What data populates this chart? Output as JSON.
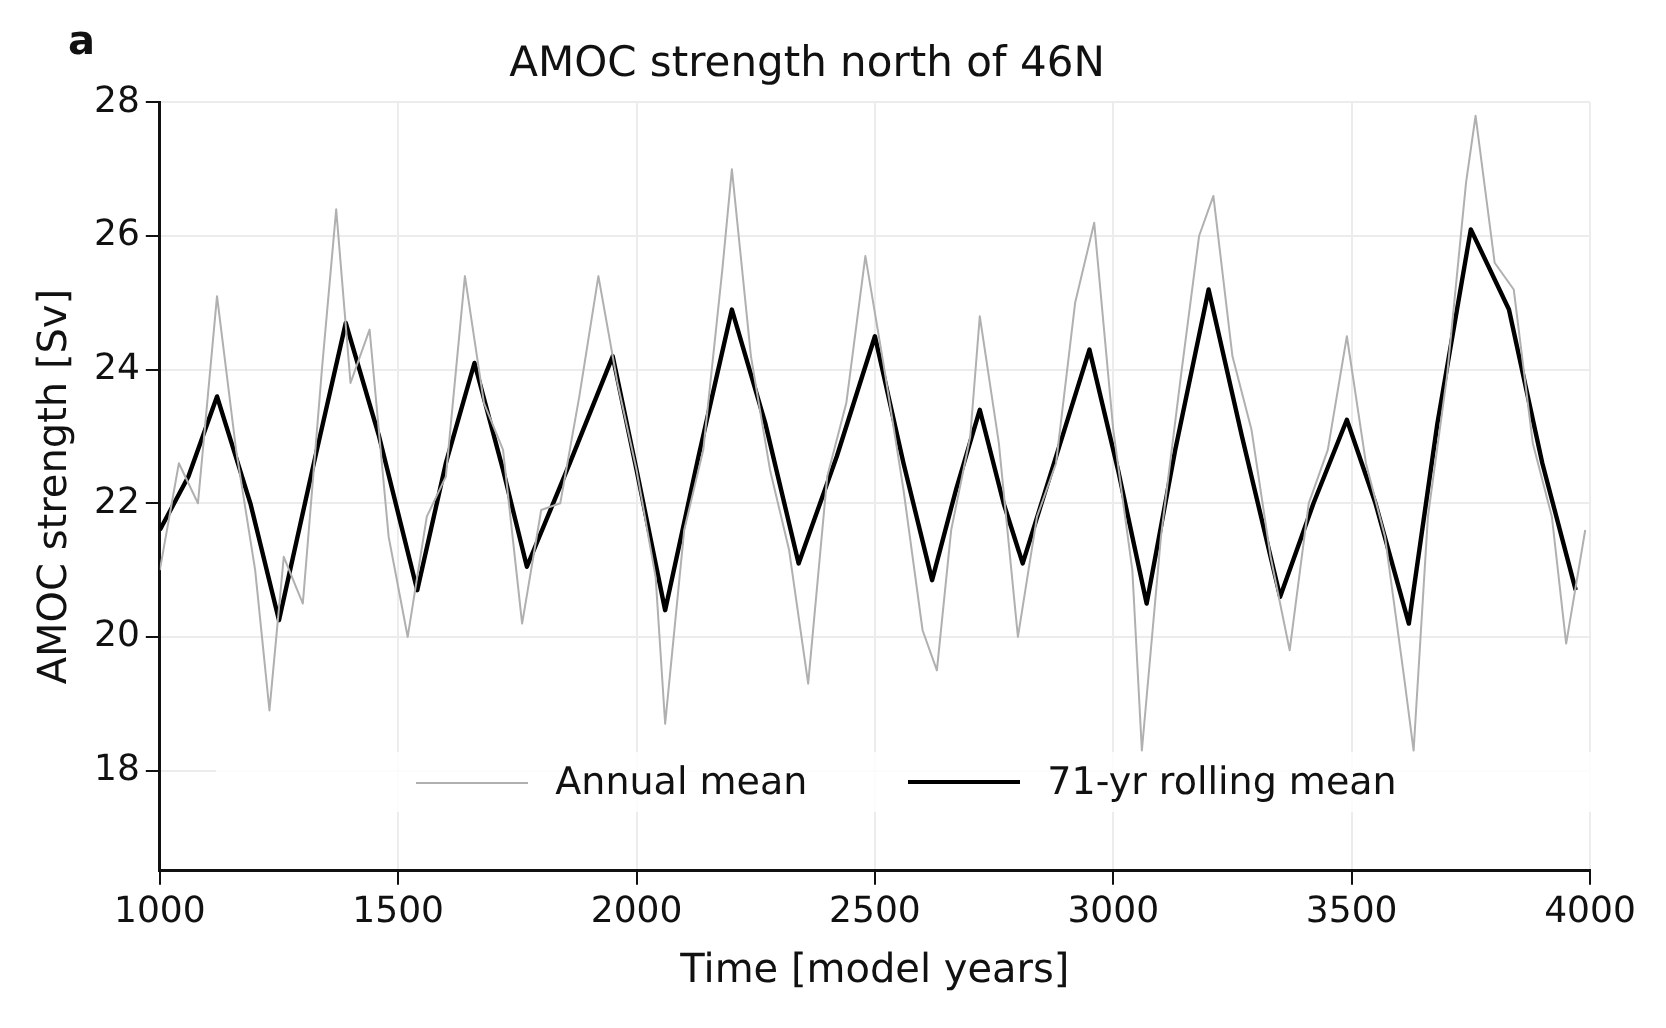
{
  "chart_data": {
    "type": "line",
    "title": "AMOC strength north of 46N",
    "xlabel": "Time [model years]",
    "ylabel": "AMOC strength [Sv]",
    "annotations": [
      "a"
    ],
    "series": [
      {
        "name": "Annual mean",
        "color": "#b0b0b0",
        "x": [
          1000,
          1040,
          1080,
          1120,
          1160,
          1200,
          1230,
          1260,
          1300,
          1340,
          1370,
          1400,
          1440,
          1480,
          1520,
          1560,
          1600,
          1640,
          1680,
          1720,
          1760,
          1800,
          1840,
          1880,
          1920,
          1960,
          2000,
          2040,
          2060,
          2100,
          2140,
          2180,
          2200,
          2240,
          2280,
          2320,
          2360,
          2400,
          2440,
          2480,
          2520,
          2560,
          2600,
          2630,
          2660,
          2700,
          2720,
          2760,
          2800,
          2840,
          2880,
          2920,
          2960,
          3000,
          3040,
          3060,
          3100,
          3140,
          3180,
          3210,
          3250,
          3290,
          3330,
          3370,
          3410,
          3450,
          3490,
          3530,
          3570,
          3610,
          3630,
          3660,
          3700,
          3740,
          3760,
          3800,
          3840,
          3880,
          3920,
          3950,
          3990
        ],
        "values": [
          21.0,
          22.6,
          22.0,
          25.1,
          22.8,
          21.0,
          18.9,
          21.2,
          20.5,
          24.0,
          26.4,
          23.8,
          24.6,
          21.5,
          20.0,
          21.8,
          22.4,
          25.4,
          23.5,
          22.8,
          20.2,
          21.9,
          22.0,
          23.6,
          25.4,
          23.8,
          22.5,
          20.9,
          18.7,
          21.6,
          22.8,
          25.5,
          27.0,
          24.2,
          22.5,
          21.3,
          19.3,
          22.4,
          23.5,
          25.7,
          24.0,
          22.2,
          20.1,
          19.5,
          21.6,
          23.0,
          24.8,
          22.9,
          20.0,
          21.8,
          22.6,
          25.0,
          26.2,
          23.1,
          21.0,
          18.3,
          21.5,
          23.8,
          26.0,
          26.6,
          24.2,
          23.1,
          21.2,
          19.8,
          22.0,
          22.8,
          24.5,
          22.6,
          21.5,
          19.4,
          18.3,
          21.8,
          23.9,
          26.8,
          27.8,
          25.6,
          25.2,
          22.9,
          21.8,
          19.9,
          21.6
        ]
      },
      {
        "name": "71-yr rolling mean",
        "color": "#000000",
        "x": [
          1000,
          1060,
          1120,
          1190,
          1250,
          1320,
          1390,
          1460,
          1540,
          1600,
          1660,
          1720,
          1770,
          1860,
          1950,
          2000,
          2060,
          2130,
          2200,
          2270,
          2340,
          2420,
          2500,
          2560,
          2620,
          2670,
          2720,
          2770,
          2810,
          2880,
          2950,
          3010,
          3070,
          3130,
          3200,
          3270,
          3350,
          3420,
          3490,
          3550,
          3620,
          3680,
          3750,
          3830,
          3900,
          3970
        ],
        "values": [
          21.6,
          22.4,
          23.6,
          22.0,
          20.25,
          22.5,
          24.7,
          23.0,
          20.7,
          22.6,
          24.1,
          22.5,
          21.05,
          22.6,
          24.2,
          22.5,
          20.4,
          22.7,
          24.9,
          23.2,
          21.1,
          22.7,
          24.5,
          22.6,
          20.85,
          22.2,
          23.4,
          22.0,
          21.1,
          22.7,
          24.3,
          22.5,
          20.5,
          22.8,
          25.2,
          23.0,
          20.6,
          22.0,
          23.25,
          22.0,
          20.2,
          23.2,
          26.1,
          24.9,
          22.6,
          20.7
        ]
      }
    ],
    "xlim": [
      1000,
      4000
    ],
    "xticks": [
      1000,
      1500,
      2000,
      2500,
      3000,
      3500,
      4000
    ],
    "ylim": [
      16.5,
      28
    ],
    "yticks": [
      18,
      20,
      22,
      24,
      26,
      28
    ],
    "grid": true,
    "legend": "bottom",
    "line_style": "solid"
  }
}
